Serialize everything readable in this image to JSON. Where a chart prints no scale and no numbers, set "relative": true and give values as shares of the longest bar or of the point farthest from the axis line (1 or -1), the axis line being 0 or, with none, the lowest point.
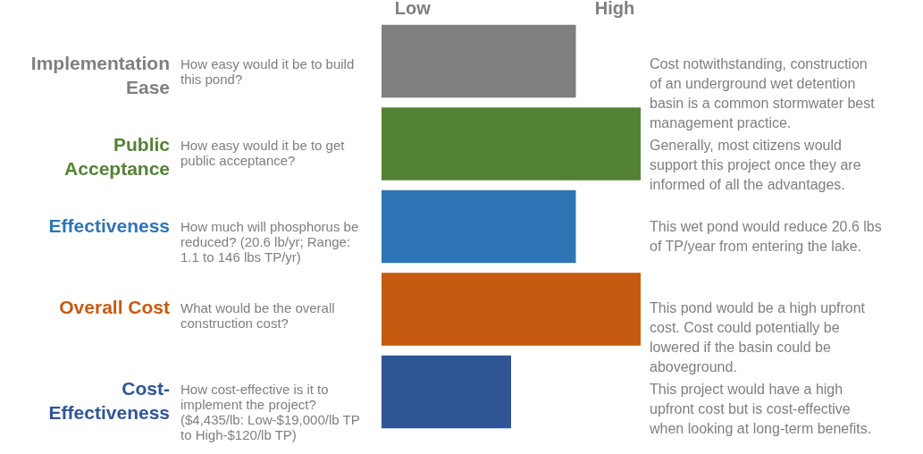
{
  "chart_data": {
    "type": "bar",
    "orientation": "horizontal",
    "relative": true,
    "categories": [
      "Implementation Ease",
      "Public Acceptance",
      "Effectiveness",
      "Overall Cost",
      "Cost-Effectiveness"
    ],
    "values": [
      0.75,
      1,
      0.75,
      1,
      0.5
    ],
    "colors": [
      "#7f7f7f",
      "#548235",
      "#2e75b6",
      "#c55a11",
      "#2f5597"
    ],
    "annotations": [
      "Low",
      "High",
      "How easy would it be to build this pond?",
      "How easy would it be to get public acceptance?",
      "How much will phosphorus be reduced? (20.6 lb/yr;  Range:  1.1 to 146 lbs TP/yr)",
      "What would be the overall construction cost?",
      "How cost-effective is it to implement the project? ($4,435/lb:  Low-$19,000/lb TP to High-$120/lb TP)",
      "Cost notwithstanding, construction of an underground wet detention basin is a common stormwater best management practice.",
      "Generally, most citizens would support this project once they are informed of all the advantages.",
      "This wet pond would reduce 20.6 lbs of TP/year from entering the lake.",
      "This pond would be a high upfront cost.  Cost could potentially be lowered if the basin could be aboveground.",
      "This project would have a high upfront cost but is cost-effective when looking at long-term benefits."
    ]
  }
}
